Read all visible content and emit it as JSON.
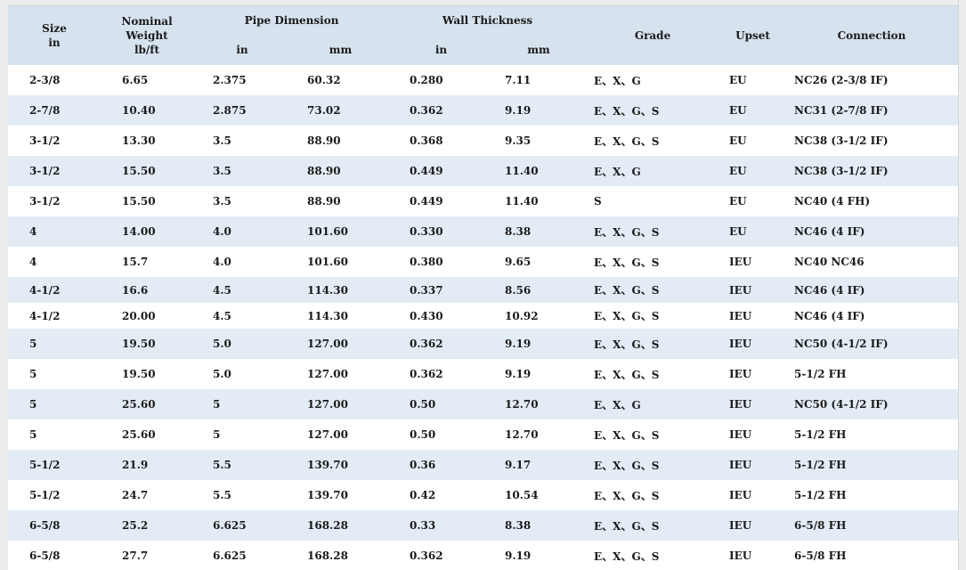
{
  "headers": {
    "size_line1": "Size",
    "size_line2": "in",
    "nominal_line1": "Nominal",
    "nominal_line2": "Weight",
    "nominal_line3": "lb/ft",
    "pipe_dimension": "Pipe Dimension",
    "wall_thickness": "Wall Thickness",
    "grade": "Grade",
    "upset": "Upset",
    "connection": "Connection",
    "pipe_in": "in",
    "pipe_mm": "mm",
    "wall_in": "in",
    "wall_mm": "mm"
  },
  "rows": [
    [
      "2-3/8",
      "6.65",
      "2.375",
      "60.32",
      "0.280",
      "7.11",
      "E、X、G",
      "EU",
      "NC26 (2-3/8 IF)"
    ],
    [
      "2-7/8",
      "10.40",
      "2.875",
      "73.02",
      "0.362",
      "9.19",
      "E、X、G、S",
      "EU",
      "NC31 (2-7/8 IF)"
    ],
    [
      "3-1/2",
      "13.30",
      "3.5",
      "88.90",
      "0.368",
      "9.35",
      "E、X、G、S",
      "EU",
      "NC38 (3-1/2 IF)"
    ],
    [
      "3-1/2",
      "15.50",
      "3.5",
      "88.90",
      "0.449",
      "11.40",
      "E、X、G",
      "EU",
      "NC38 (3-1/2 IF)"
    ],
    [
      "3-1/2",
      "15.50",
      "3.5",
      "88.90",
      "0.449",
      "11.40",
      "S",
      "EU",
      "NC40 (4 FH)"
    ],
    [
      "4",
      "14.00",
      "4.0",
      "101.60",
      "0.330",
      "8.38",
      "E、X、G、S",
      "EU",
      "NC46 (4 IF)"
    ],
    [
      "4",
      "15.7",
      "4.0",
      "101.60",
      "0.380",
      "9.65",
      "E、X、G、S",
      "IEU",
      "NC40  NC46"
    ],
    [
      "4-1/2",
      "16.6",
      "4.5",
      "114.30",
      "0.337",
      "8.56",
      "E、X、G、S",
      "IEU",
      "NC46 (4 IF)"
    ],
    [
      "4-1/2",
      "20.00",
      "4.5",
      "114.30",
      "0.430",
      "10.92",
      "E、X、G、S",
      "IEU",
      "NC46 (4 IF)"
    ],
    [
      "5",
      "19.50",
      "5.0",
      "127.00",
      "0.362",
      "9.19",
      "E、X、G、S",
      "IEU",
      "NC50 (4-1/2 IF)"
    ],
    [
      "5",
      "19.50",
      "5.0",
      "127.00",
      "0.362",
      "9.19",
      "E、X、G、S",
      "IEU",
      "5-1/2 FH"
    ],
    [
      "5",
      "25.60",
      "5",
      "127.00",
      "0.50",
      "12.70",
      "E、X、G",
      "IEU",
      "NC50 (4-1/2 IF)"
    ],
    [
      "5",
      "25.60",
      "5",
      "127.00",
      "0.50",
      "12.70",
      "E、X、G、S",
      "IEU",
      "5-1/2 FH"
    ],
    [
      "5-1/2",
      "21.9",
      "5.5",
      "139.70",
      "0.36",
      "9.17",
      "E、X、G、S",
      "IEU",
      "5-1/2 FH"
    ],
    [
      "5-1/2",
      "24.7",
      "5.5",
      "139.70",
      "0.42",
      "10.54",
      "E、X、G、S",
      "IEU",
      "5-1/2 FH"
    ],
    [
      "6-5/8",
      "25.2",
      "6.625",
      "168.28",
      "0.33",
      "8.38",
      "E、X、G、S",
      "IEU",
      "6-5/8 FH"
    ],
    [
      "6-5/8",
      "27.7",
      "6.625",
      "168.28",
      "0.362",
      "9.19",
      "E、X、G、S",
      "IEU",
      "6-5/8 FH"
    ]
  ],
  "row_heights": [],
  "colors": {
    "header_bg": "#d6e3ef",
    "stripe_bg": "#e3ecf5",
    "text": "#1a1a1a"
  }
}
